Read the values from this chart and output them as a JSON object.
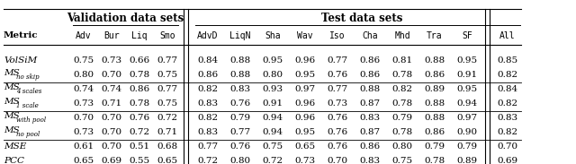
{
  "header_group1": "Validation data sets",
  "header_group2": "Test data sets",
  "col_headers": [
    "Metric",
    "Adv",
    "Bur",
    "Liq",
    "Smo",
    "AdvD",
    "LiqN",
    "Sha",
    "Wav",
    "Iso",
    "Cha",
    "Mhd",
    "Tra",
    "SF",
    "All"
  ],
  "rows": [
    {
      "metric": "VolSiM",
      "sub_text": "",
      "values": [
        "0.75",
        "0.73",
        "0.66",
        "0.77",
        "0.84",
        "0.88",
        "0.95",
        "0.96",
        "0.77",
        "0.86",
        "0.81",
        "0.88",
        "0.95",
        "0.85"
      ]
    },
    {
      "metric": "MS",
      "sub_text": "no skip",
      "values": [
        "0.80",
        "0.70",
        "0.78",
        "0.75",
        "0.86",
        "0.88",
        "0.80",
        "0.95",
        "0.76",
        "0.86",
        "0.78",
        "0.86",
        "0.91",
        "0.82"
      ]
    },
    {
      "metric": "MS",
      "sub_text": "4 scales",
      "values": [
        "0.74",
        "0.74",
        "0.86",
        "0.77",
        "0.82",
        "0.83",
        "0.93",
        "0.97",
        "0.77",
        "0.88",
        "0.82",
        "0.89",
        "0.95",
        "0.84"
      ]
    },
    {
      "metric": "MS",
      "sub_text": "1 scale",
      "values": [
        "0.73",
        "0.71",
        "0.78",
        "0.75",
        "0.83",
        "0.76",
        "0.91",
        "0.96",
        "0.73",
        "0.87",
        "0.78",
        "0.88",
        "0.94",
        "0.82"
      ]
    },
    {
      "metric": "MS",
      "sub_text": "with pool",
      "values": [
        "0.70",
        "0.70",
        "0.76",
        "0.72",
        "0.82",
        "0.79",
        "0.94",
        "0.96",
        "0.76",
        "0.83",
        "0.79",
        "0.88",
        "0.97",
        "0.83"
      ]
    },
    {
      "metric": "MS",
      "sub_text": "no pool",
      "values": [
        "0.73",
        "0.70",
        "0.72",
        "0.71",
        "0.83",
        "0.77",
        "0.94",
        "0.95",
        "0.76",
        "0.87",
        "0.78",
        "0.86",
        "0.90",
        "0.82"
      ]
    },
    {
      "metric": "MSE",
      "sub_text": "",
      "values": [
        "0.61",
        "0.70",
        "0.51",
        "0.68",
        "0.77",
        "0.76",
        "0.75",
        "0.65",
        "0.76",
        "0.86",
        "0.80",
        "0.79",
        "0.79",
        "0.70"
      ]
    },
    {
      "metric": "PCC",
      "sub_text": "",
      "values": [
        "0.65",
        "0.69",
        "0.55",
        "0.65",
        "0.72",
        "0.80",
        "0.72",
        "0.73",
        "0.70",
        "0.83",
        "0.75",
        "0.78",
        "0.89",
        "0.69"
      ]
    }
  ],
  "dividers_after_rows": [
    1,
    3,
    5
  ],
  "figsize": [
    6.4,
    1.83
  ],
  "dpi": 100
}
